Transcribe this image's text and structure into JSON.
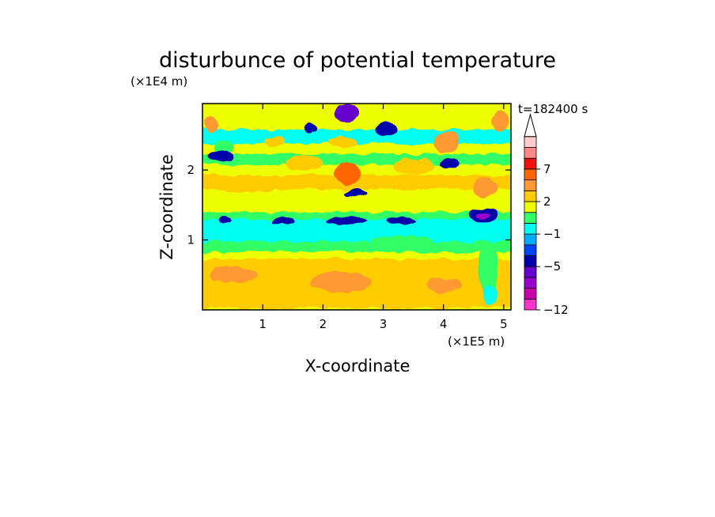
{
  "chart_data": {
    "type": "heatmap",
    "title": "disturbunce of potential temperature",
    "xlabel": "X-coordinate",
    "ylabel": "Z-coordinate",
    "x_unit": "(×1E5 m)",
    "y_unit": "(×1E4 m)",
    "time_label": "t=182400 s",
    "xlim": [
      0,
      5.12
    ],
    "ylim": [
      0,
      2.95
    ],
    "x_ticks": [
      1,
      2,
      3,
      4,
      5
    ],
    "y_ticks": [
      1,
      2
    ],
    "colorbar": {
      "levels": [
        -12,
        -10,
        -8,
        -6,
        -5,
        -4,
        -2,
        -1,
        0,
        1,
        2,
        4,
        5,
        7,
        8,
        10
      ],
      "tick_labels": [
        "-12",
        "-5",
        "-1",
        "2",
        "7"
      ],
      "tick_values": [
        -12,
        -5,
        -1,
        2,
        7
      ],
      "colors": [
        "#ff33cc",
        "#cc00aa",
        "#9900cc",
        "#6600cc",
        "#0000aa",
        "#0044ff",
        "#00aaff",
        "#00ffee",
        "#33ff66",
        "#eeff00",
        "#ffcc00",
        "#ff9933",
        "#ff6600",
        "#ee1111",
        "#ff8888",
        "#ffcccc"
      ],
      "extend_top": true
    },
    "bands": [
      {
        "z": [
          0.0,
          0.05
        ],
        "value": 1
      },
      {
        "z": [
          0.05,
          0.3
        ],
        "value": 2
      },
      {
        "z": [
          0.3,
          0.75
        ],
        "value": 2
      },
      {
        "z": [
          0.75,
          0.85
        ],
        "value": 1
      },
      {
        "z": [
          0.85,
          1.0
        ],
        "value": 0
      },
      {
        "z": [
          1.0,
          1.2
        ],
        "value": -1
      },
      {
        "z": [
          1.2,
          1.32
        ],
        "value": -1
      },
      {
        "z": [
          1.32,
          1.42
        ],
        "value": 0
      },
      {
        "z": [
          1.42,
          1.55
        ],
        "value": 1
      },
      {
        "z": [
          1.55,
          1.75
        ],
        "value": 1
      },
      {
        "z": [
          1.75,
          1.95
        ],
        "value": 2
      },
      {
        "z": [
          1.95,
          2.1
        ],
        "value": 1
      },
      {
        "z": [
          2.1,
          2.25
        ],
        "value": 0
      },
      {
        "z": [
          2.25,
          2.4
        ],
        "value": 1
      },
      {
        "z": [
          2.4,
          2.6
        ],
        "value": -1
      },
      {
        "z": [
          2.6,
          2.95
        ],
        "value": 1
      }
    ],
    "features": [
      {
        "x": 2.4,
        "z": 2.82,
        "rx": 0.2,
        "rz": 0.12,
        "value": -6
      },
      {
        "x": 1.8,
        "z": 2.6,
        "rx": 0.1,
        "rz": 0.08,
        "value": -5
      },
      {
        "x": 3.05,
        "z": 2.58,
        "rx": 0.18,
        "rz": 0.1,
        "value": -5
      },
      {
        "x": 1.2,
        "z": 2.4,
        "rx": 0.15,
        "rz": 0.08,
        "value": 2
      },
      {
        "x": 2.35,
        "z": 2.4,
        "rx": 0.25,
        "rz": 0.08,
        "value": 2
      },
      {
        "x": 0.35,
        "z": 2.32,
        "rx": 0.15,
        "rz": 0.1,
        "value": 0
      },
      {
        "x": 0.3,
        "z": 2.2,
        "rx": 0.2,
        "rz": 0.08,
        "value": -5
      },
      {
        "x": 1.7,
        "z": 2.1,
        "rx": 0.3,
        "rz": 0.12,
        "value": 2
      },
      {
        "x": 2.4,
        "z": 1.95,
        "rx": 0.25,
        "rz": 0.15,
        "value": 5
      },
      {
        "x": 3.5,
        "z": 2.05,
        "rx": 0.35,
        "rz": 0.12,
        "value": 2
      },
      {
        "x": 4.05,
        "z": 2.4,
        "rx": 0.2,
        "rz": 0.15,
        "value": 4
      },
      {
        "x": 4.1,
        "z": 2.1,
        "rx": 0.15,
        "rz": 0.07,
        "value": -5
      },
      {
        "x": 4.95,
        "z": 2.7,
        "rx": 0.15,
        "rz": 0.15,
        "value": 4
      },
      {
        "x": 0.15,
        "z": 2.65,
        "rx": 0.12,
        "rz": 0.12,
        "value": 4
      },
      {
        "x": 2.55,
        "z": 1.68,
        "rx": 0.18,
        "rz": 0.05,
        "value": -5
      },
      {
        "x": 0.75,
        "z": 1.75,
        "rx": 0.5,
        "rz": 0.08,
        "value": 2
      },
      {
        "x": 4.7,
        "z": 1.75,
        "rx": 0.2,
        "rz": 0.15,
        "value": 4
      },
      {
        "x": 0.35,
        "z": 1.28,
        "rx": 0.12,
        "rz": 0.06,
        "value": -5
      },
      {
        "x": 1.35,
        "z": 1.27,
        "rx": 0.2,
        "rz": 0.05,
        "value": -5
      },
      {
        "x": 2.4,
        "z": 1.27,
        "rx": 0.35,
        "rz": 0.05,
        "value": -5
      },
      {
        "x": 3.3,
        "z": 1.27,
        "rx": 0.25,
        "rz": 0.05,
        "value": -5
      },
      {
        "x": 4.65,
        "z": 1.35,
        "rx": 0.25,
        "rz": 0.1,
        "value": -5
      },
      {
        "x": 4.65,
        "z": 1.35,
        "rx": 0.1,
        "rz": 0.05,
        "value": -8
      },
      {
        "x": 3.3,
        "z": 1.0,
        "rx": 0.5,
        "rz": 0.06,
        "value": 0
      },
      {
        "x": 2.3,
        "z": 0.4,
        "rx": 0.5,
        "rz": 0.15,
        "value": 4
      },
      {
        "x": 0.5,
        "z": 0.5,
        "rx": 0.4,
        "rz": 0.12,
        "value": 4
      },
      {
        "x": 4.0,
        "z": 0.35,
        "rx": 0.3,
        "rz": 0.1,
        "value": 4
      },
      {
        "x": 4.75,
        "z": 0.6,
        "rx": 0.15,
        "rz": 0.4,
        "value": 0
      },
      {
        "x": 4.75,
        "z": 0.2,
        "rx": 0.12,
        "rz": 0.15,
        "value": -1
      }
    ]
  }
}
